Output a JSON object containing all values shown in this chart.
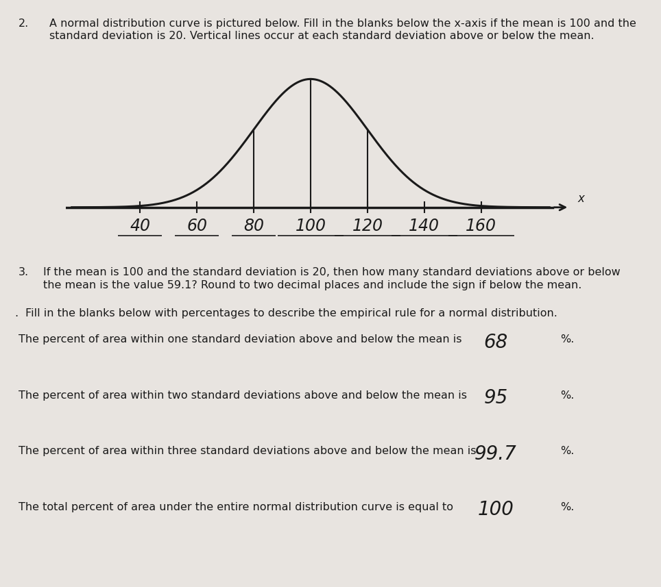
{
  "background_color": "#e8e4e0",
  "title_number": "2.",
  "title_text_line1": "A normal distribution curve is pictured below. Fill in the blanks below the x-axis if the mean is 100 and the",
  "title_text_line2": "standard deviation is 20. Vertical lines occur at each standard deviation above or below the mean.",
  "mean": 100,
  "std": 20,
  "x_labels": [
    "40",
    "60",
    "80",
    "100",
    "120",
    "140",
    "160"
  ],
  "x_values": [
    40,
    60,
    80,
    100,
    120,
    140,
    160
  ],
  "vertical_lines": [
    80,
    100,
    120
  ],
  "q3_number": "3.",
  "q3_text_line1": "If the mean is 100 and the standard deviation is 20, then how many standard deviations above or below",
  "q3_text_line2": "the mean is the value 59.1? Round to two decimal places and include the sign if below the mean.",
  "section4_number": ".",
  "section4_header": "Fill in the blanks below with percentages to describe the empirical rule for a normal distribution.",
  "line1_text": "The percent of area within one standard deviation above and below the mean is",
  "line1_answer": "68",
  "line2_text": "The percent of area within two standard deviations above and below the mean is",
  "line2_answer": "95",
  "line3_text": "The percent of area within three standard deviations above and below the mean is",
  "line3_answer": "99.7",
  "line4_text": "The total percent of area under the entire normal distribution curve is equal to",
  "line4_answer": "100",
  "curve_color": "#1a1a1a",
  "text_color": "#1a1a1a",
  "font_size_body": 11.5,
  "font_size_answer": 20,
  "font_size_title": 11.5,
  "font_size_label": 17
}
